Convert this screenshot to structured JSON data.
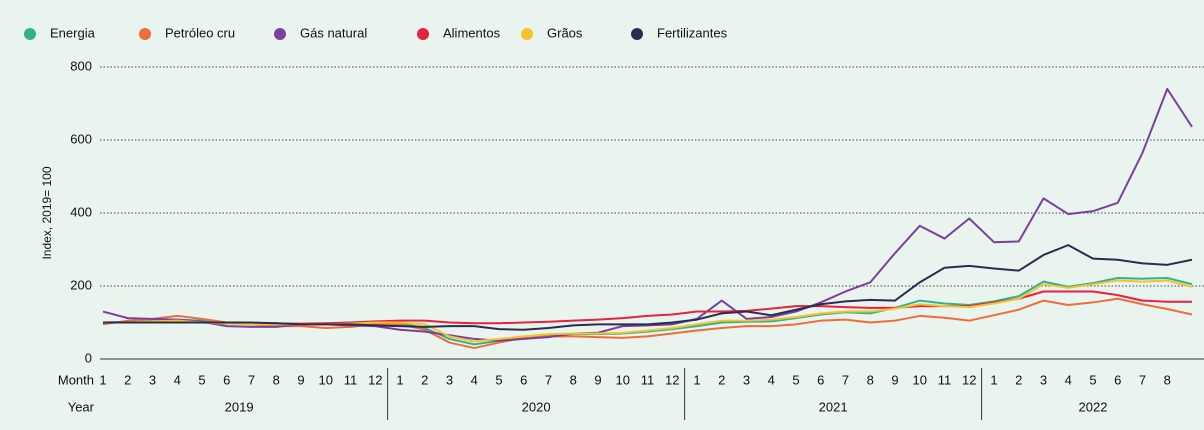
{
  "chart_data": {
    "type": "line",
    "y_label": "Index, 2019= 100",
    "x_row_labels": [
      "Month",
      "Year"
    ],
    "year_labels": [
      "2019",
      "2020",
      "2021",
      "2022"
    ],
    "categories": [
      "1",
      "2",
      "3",
      "4",
      "5",
      "6",
      "7",
      "8",
      "9",
      "10",
      "11",
      "12",
      "1",
      "2",
      "3",
      "4",
      "5",
      "6",
      "7",
      "8",
      "9",
      "10",
      "11",
      "12",
      "1",
      "2",
      "3",
      "4",
      "5",
      "6",
      "7",
      "8",
      "9",
      "10",
      "11",
      "12",
      "1",
      "2",
      "3",
      "4",
      "5",
      "6",
      "7",
      "8",
      null
    ],
    "ylim": [
      0,
      800
    ],
    "yticks": [
      0,
      200,
      400,
      600,
      800
    ],
    "grid": true,
    "series": [
      {
        "name": "Energia",
        "color": "#2fb38f",
        "values": [
          100,
          102,
          105,
          108,
          105,
          100,
          98,
          98,
          96,
          95,
          97,
          100,
          98,
          85,
          55,
          40,
          50,
          60,
          65,
          68,
          68,
          70,
          75,
          82,
          90,
          100,
          102,
          103,
          112,
          122,
          128,
          125,
          140,
          160,
          152,
          148,
          158,
          172,
          212,
          198,
          208,
          222,
          220,
          222,
          205
        ]
      },
      {
        "name": "Petróleo cru",
        "color": "#f26b3a",
        "values": [
          95,
          105,
          110,
          118,
          110,
          100,
          95,
          90,
          90,
          85,
          88,
          95,
          95,
          80,
          45,
          30,
          45,
          58,
          62,
          62,
          60,
          58,
          62,
          70,
          78,
          85,
          90,
          90,
          95,
          105,
          108,
          100,
          105,
          118,
          113,
          105,
          120,
          135,
          160,
          148,
          155,
          165,
          150,
          137,
          122
        ]
      },
      {
        "name": "Gás natural",
        "color": "#7b3fa0",
        "values": [
          130,
          112,
          110,
          108,
          102,
          90,
          88,
          88,
          95,
          95,
          92,
          90,
          80,
          75,
          65,
          55,
          50,
          55,
          60,
          70,
          72,
          90,
          92,
          95,
          110,
          160,
          110,
          115,
          130,
          155,
          185,
          210,
          290,
          365,
          330,
          385,
          320,
          322,
          440,
          397,
          405,
          428,
          565,
          740,
          636
        ]
      },
      {
        "name": "Alimentos",
        "color": "#e8213f",
        "values": [
          100,
          100,
          100,
          100,
          100,
          98,
          97,
          97,
          97,
          98,
          100,
          103,
          105,
          105,
          100,
          98,
          98,
          100,
          102,
          105,
          108,
          112,
          118,
          122,
          130,
          130,
          132,
          138,
          145,
          145,
          142,
          140,
          140,
          145,
          145,
          145,
          155,
          165,
          185,
          185,
          185,
          175,
          160,
          157,
          157
        ]
      },
      {
        "name": "Grãos",
        "color": "#f5c42c",
        "values": [
          100,
          100,
          103,
          105,
          100,
          97,
          95,
          95,
          95,
          95,
          97,
          100,
          100,
          95,
          62,
          48,
          55,
          62,
          68,
          70,
          70,
          72,
          78,
          85,
          95,
          105,
          105,
          108,
          115,
          125,
          130,
          130,
          138,
          150,
          145,
          142,
          152,
          165,
          205,
          195,
          205,
          215,
          212,
          215,
          198
        ]
      },
      {
        "name": "Fertilizantes",
        "color": "#2b2d4e",
        "values": [
          100,
          100,
          100,
          100,
          100,
          100,
          100,
          98,
          95,
          95,
          95,
          92,
          90,
          88,
          90,
          90,
          82,
          80,
          85,
          92,
          95,
          95,
          95,
          100,
          108,
          125,
          130,
          120,
          135,
          150,
          158,
          162,
          160,
          210,
          250,
          255,
          248,
          242,
          285,
          312,
          275,
          272,
          262,
          258,
          272
        ]
      }
    ]
  }
}
